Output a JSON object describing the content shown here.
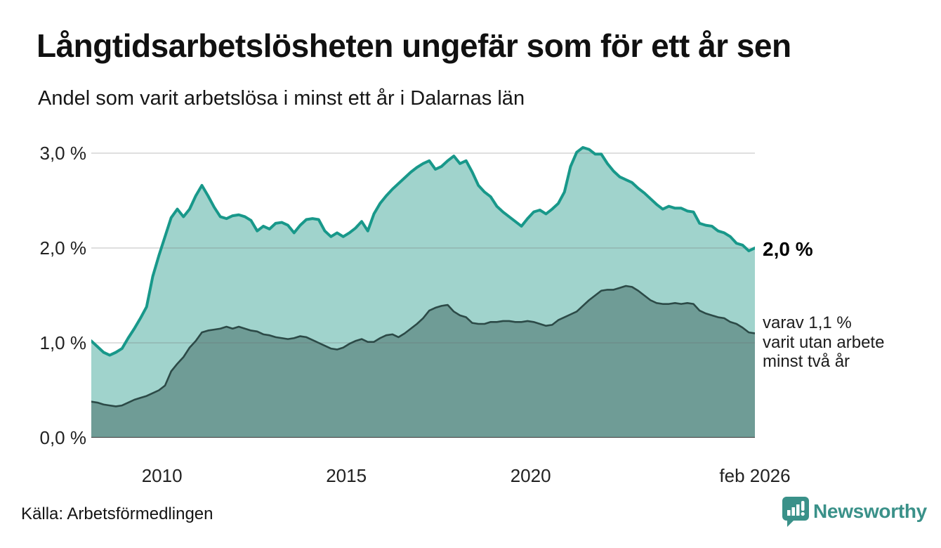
{
  "header": {
    "title": "Långtidsarbetslösheten ungefär som för ett år sen",
    "subtitle": "Andel som varit arbetslösa i minst ett år i Dalarnas län"
  },
  "annotations": {
    "end_value_label": "2,0 %",
    "secondary_lines": [
      "varav 1,1 %",
      "varit utan arbete",
      "minst två år"
    ]
  },
  "source": {
    "label": "Källa: Arbetsförmedlingen"
  },
  "brand": {
    "name": "Newsworthy",
    "color": "#3A9189",
    "logo_icon": "bar-chart-speech-bubble-icon"
  },
  "chart_data": {
    "type": "area",
    "title": "Långtidsarbetslösheten ungefär som för ett år sen",
    "subtitle": "Andel som varit arbetslösa i minst ett år i Dalarnas län",
    "unit": "%",
    "x_axis": {
      "range": [
        2008.083,
        2026.083
      ],
      "step_months": 2,
      "ticks": [
        {
          "label": "2010",
          "year": 2010
        },
        {
          "label": "2015",
          "year": 2015
        },
        {
          "label": "2020",
          "year": 2020
        },
        {
          "label": "feb 2026",
          "year": 2026.083
        }
      ]
    },
    "y_axis": {
      "range": [
        0,
        3.15
      ],
      "gridlines": true,
      "ticks": [
        {
          "label": "3,0 %",
          "value": 3
        },
        {
          "label": "2,0 %",
          "value": 2
        },
        {
          "label": "1,0 %",
          "value": 1
        },
        {
          "label": "0,0 %",
          "value": 0
        }
      ]
    },
    "series": [
      {
        "name": "arbetslösa minst ett år",
        "line_color": "#18988A",
        "fill_color": "#A0D3CC",
        "line_width": 4,
        "end_value": 2.0,
        "end_label": "2,0 %",
        "values": [
          1.02,
          0.96,
          0.9,
          0.87,
          0.9,
          0.94,
          1.05,
          1.15,
          1.26,
          1.38,
          1.7,
          1.92,
          2.12,
          2.32,
          2.41,
          2.33,
          2.41,
          2.55,
          2.66,
          2.55,
          2.43,
          2.33,
          2.31,
          2.34,
          2.35,
          2.33,
          2.29,
          2.18,
          2.23,
          2.2,
          2.26,
          2.27,
          2.24,
          2.16,
          2.24,
          2.3,
          2.31,
          2.3,
          2.18,
          2.12,
          2.16,
          2.12,
          2.16,
          2.21,
          2.28,
          2.18,
          2.36,
          2.47,
          2.55,
          2.62,
          2.68,
          2.74,
          2.8,
          2.85,
          2.89,
          2.92,
          2.83,
          2.86,
          2.92,
          2.97,
          2.89,
          2.92,
          2.8,
          2.66,
          2.59,
          2.54,
          2.44,
          2.38,
          2.33,
          2.28,
          2.23,
          2.31,
          2.38,
          2.4,
          2.36,
          2.41,
          2.47,
          2.59,
          2.86,
          3.01,
          3.06,
          3.04,
          2.99,
          2.99,
          2.89,
          2.81,
          2.75,
          2.72,
          2.69,
          2.63,
          2.58,
          2.52,
          2.46,
          2.41,
          2.44,
          2.42,
          2.42,
          2.39,
          2.38,
          2.26,
          2.24,
          2.23,
          2.18,
          2.16,
          2.12,
          2.05,
          2.03,
          1.97,
          2.0
        ]
      },
      {
        "name": "varav utan arbete minst två år",
        "line_color": "#2C4A47",
        "fill_color": "#6F9C96",
        "line_width": 2.6,
        "end_value": 1.1,
        "end_label": "varav 1,1 % varit utan arbete minst två år",
        "values": [
          0.38,
          0.37,
          0.35,
          0.34,
          0.33,
          0.34,
          0.37,
          0.4,
          0.42,
          0.44,
          0.47,
          0.5,
          0.55,
          0.7,
          0.78,
          0.85,
          0.95,
          1.02,
          1.11,
          1.13,
          1.14,
          1.15,
          1.17,
          1.15,
          1.17,
          1.15,
          1.13,
          1.12,
          1.09,
          1.08,
          1.06,
          1.05,
          1.04,
          1.05,
          1.07,
          1.06,
          1.03,
          1.0,
          0.97,
          0.94,
          0.93,
          0.95,
          0.99,
          1.02,
          1.04,
          1.01,
          1.01,
          1.05,
          1.08,
          1.09,
          1.06,
          1.1,
          1.15,
          1.2,
          1.26,
          1.34,
          1.37,
          1.39,
          1.4,
          1.33,
          1.29,
          1.27,
          1.21,
          1.2,
          1.2,
          1.22,
          1.22,
          1.23,
          1.23,
          1.22,
          1.22,
          1.23,
          1.22,
          1.2,
          1.18,
          1.19,
          1.24,
          1.27,
          1.3,
          1.33,
          1.39,
          1.45,
          1.5,
          1.55,
          1.56,
          1.56,
          1.58,
          1.6,
          1.59,
          1.55,
          1.5,
          1.45,
          1.42,
          1.41,
          1.41,
          1.42,
          1.41,
          1.42,
          1.41,
          1.34,
          1.31,
          1.29,
          1.27,
          1.26,
          1.22,
          1.2,
          1.16,
          1.11,
          1.1
        ]
      }
    ],
    "style": {
      "gridline_color": "#6e6e6e",
      "gridline_opacity": 0.22,
      "baseline_color": "#3a3a3a"
    }
  }
}
